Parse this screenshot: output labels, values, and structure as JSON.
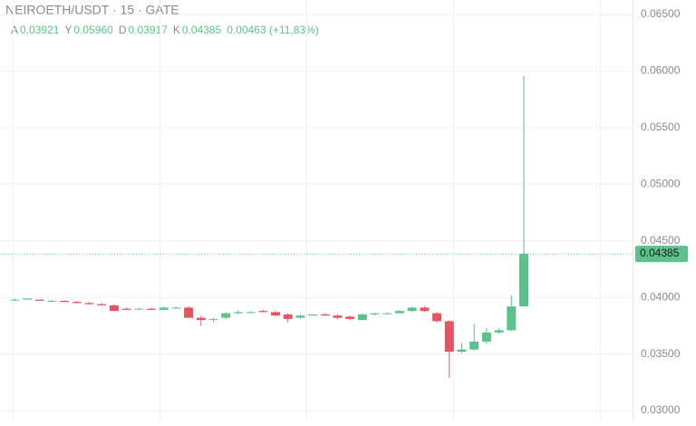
{
  "chart_data": {
    "type": "candlestick",
    "title": "NEIROETH/USDT · 15 · GATE",
    "legend_items": [
      {
        "label": "A",
        "value": "0.03921"
      },
      {
        "label": "Y",
        "value": "0.05960"
      },
      {
        "label": "D",
        "value": "0.03917"
      },
      {
        "label": "K",
        "value": "0.04385"
      }
    ],
    "change_label": "0.00463 (+11,83%)",
    "last_price_label": "0.04385",
    "up_color": "#5ec08d",
    "down_color": "#e25562",
    "open": [
      0.0398,
      0.0398,
      0.0398,
      0.0397,
      0.0397,
      0.0396,
      0.0395,
      0.0394,
      0.0393,
      0.039,
      0.039,
      0.039,
      0.0389,
      0.0391,
      0.0391,
      0.0382,
      0.0381,
      0.0382,
      0.0386,
      0.0387,
      0.0388,
      0.0387,
      0.0385,
      0.0382,
      0.0384,
      0.0385,
      0.0384,
      0.0383,
      0.038,
      0.0385,
      0.0386,
      0.0386,
      0.0388,
      0.0391,
      0.0386,
      0.0379,
      0.0352,
      0.0354,
      0.0361,
      0.0369,
      0.0371,
      0.03921
    ],
    "high": [
      0.0399,
      0.0399,
      0.0398,
      0.0398,
      0.0397,
      0.0397,
      0.0396,
      0.0395,
      0.0394,
      0.0391,
      0.0391,
      0.0391,
      0.0392,
      0.0392,
      0.0392,
      0.0384,
      0.0382,
      0.0387,
      0.0389,
      0.0388,
      0.0389,
      0.0388,
      0.0386,
      0.0385,
      0.0385,
      0.0386,
      0.0385,
      0.0384,
      0.0386,
      0.0386,
      0.0387,
      0.0389,
      0.0392,
      0.0392,
      0.0387,
      0.038,
      0.036,
      0.0377,
      0.0373,
      0.0373,
      0.0402,
      0.0596
    ],
    "low": [
      0.0397,
      0.0398,
      0.0397,
      0.0396,
      0.0396,
      0.0395,
      0.0394,
      0.0393,
      0.0388,
      0.0389,
      0.0389,
      0.0389,
      0.0389,
      0.039,
      0.0382,
      0.0375,
      0.0378,
      0.0381,
      0.0385,
      0.0386,
      0.0387,
      0.0383,
      0.0378,
      0.0381,
      0.0384,
      0.0384,
      0.0381,
      0.038,
      0.038,
      0.0384,
      0.0385,
      0.0386,
      0.0387,
      0.0387,
      0.0378,
      0.0329,
      0.0351,
      0.0353,
      0.0359,
      0.0368,
      0.037,
      0.03917
    ],
    "close": [
      0.0398,
      0.0399,
      0.0397,
      0.0397,
      0.0396,
      0.0395,
      0.0394,
      0.0393,
      0.0388,
      0.0389,
      0.039,
      0.0389,
      0.0391,
      0.0391,
      0.0382,
      0.038,
      0.0381,
      0.0386,
      0.0387,
      0.0387,
      0.0387,
      0.0384,
      0.0381,
      0.0384,
      0.0385,
      0.0384,
      0.0382,
      0.0381,
      0.0385,
      0.0386,
      0.0386,
      0.0388,
      0.0391,
      0.0388,
      0.0379,
      0.0352,
      0.0354,
      0.0361,
      0.0369,
      0.0371,
      0.0392,
      0.04385
    ],
    "ylim": [
      0.02904,
      0.06628
    ],
    "yticks": [
      {
        "value": 0.03,
        "label": "0.03000"
      },
      {
        "value": 0.035,
        "label": "0.03500"
      },
      {
        "value": 0.04,
        "label": "0.04000"
      },
      {
        "value": 0.045,
        "label": "0.04500"
      },
      {
        "value": 0.05,
        "label": "0.05000"
      },
      {
        "value": 0.055,
        "label": "0.05500"
      },
      {
        "value": 0.06,
        "label": "0.06000"
      },
      {
        "value": 0.065,
        "label": "0.06500"
      }
    ],
    "grid": true
  }
}
